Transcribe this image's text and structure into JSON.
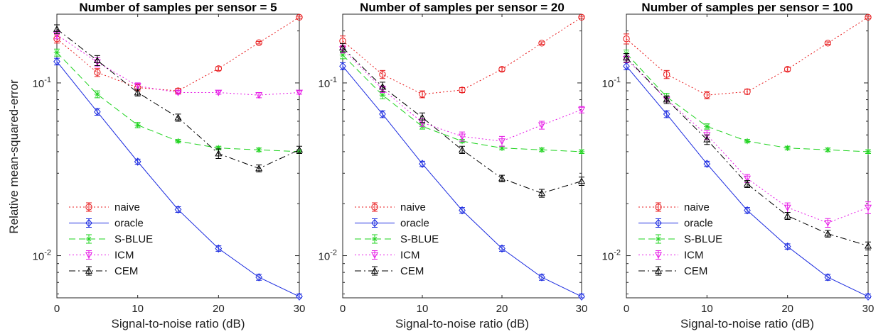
{
  "chart_data": [
    {
      "type": "line",
      "title": "Number of samples per sensor = 5",
      "xlabel": "Signal-to-noise ratio (dB)",
      "ylabel": "Relative mean-squared-error",
      "x": [
        0,
        5,
        10,
        15,
        20,
        25,
        30
      ],
      "xlim": [
        0,
        30
      ],
      "ylim": [
        0.0057,
        0.25
      ],
      "yscale": "log",
      "xticks": [
        "0",
        "10",
        "20",
        "30"
      ],
      "yticks": [
        {
          "base": "10",
          "exp": "-2"
        },
        {
          "base": "10",
          "exp": "-1"
        }
      ],
      "series": [
        {
          "name": "naive",
          "values": [
            0.18,
            0.115,
            0.094,
            0.09,
            0.121,
            0.171,
            0.24
          ],
          "err": [
            0.01,
            0.006,
            0.004,
            0.003,
            0.003,
            0.003,
            0.003
          ]
        },
        {
          "name": "oracle",
          "values": [
            0.133,
            0.068,
            0.035,
            0.0185,
            0.011,
            0.0075,
            0.0058
          ],
          "err": [
            0.006,
            0.003,
            0.0012,
            0.0007,
            0.0004,
            0.0003,
            0.0002
          ]
        },
        {
          "name": "S-BLUE",
          "values": [
            0.15,
            0.086,
            0.057,
            0.046,
            0.042,
            0.041,
            0.04
          ],
          "err": [
            0.007,
            0.004,
            0.002,
            0.001,
            0.001,
            0.001,
            0.001
          ]
        },
        {
          "name": "ICM",
          "values": [
            0.19,
            0.132,
            0.096,
            0.088,
            0.088,
            0.085,
            0.088
          ],
          "err": [
            0.01,
            0.008,
            0.004,
            0.002,
            0.002,
            0.003,
            0.002
          ]
        },
        {
          "name": "CEM",
          "values": [
            0.205,
            0.135,
            0.088,
            0.063,
            0.039,
            0.032,
            0.041
          ],
          "err": [
            0.012,
            0.009,
            0.004,
            0.003,
            0.0025,
            0.0015,
            0.002
          ]
        }
      ]
    },
    {
      "type": "line",
      "title": "Number of samples per sensor = 20",
      "xlabel": "Signal-to-noise ratio (dB)",
      "ylabel": "",
      "x": [
        0,
        5,
        10,
        15,
        20,
        25,
        30
      ],
      "xlim": [
        0,
        30
      ],
      "ylim": [
        0.0057,
        0.25
      ],
      "yscale": "log",
      "xticks": [
        "0",
        "10",
        "20",
        "30"
      ],
      "yticks": [
        {
          "base": "10",
          "exp": "-2"
        },
        {
          "base": "10",
          "exp": "-1"
        }
      ],
      "series": [
        {
          "name": "naive",
          "values": [
            0.175,
            0.112,
            0.086,
            0.091,
            0.12,
            0.17,
            0.24
          ],
          "err": [
            0.012,
            0.006,
            0.004,
            0.003,
            0.003,
            0.003,
            0.003
          ]
        },
        {
          "name": "oracle",
          "values": [
            0.125,
            0.066,
            0.034,
            0.0183,
            0.011,
            0.0075,
            0.0058
          ],
          "err": [
            0.006,
            0.003,
            0.0012,
            0.0007,
            0.0004,
            0.0003,
            0.0002
          ]
        },
        {
          "name": "S-BLUE",
          "values": [
            0.145,
            0.085,
            0.056,
            0.046,
            0.042,
            0.041,
            0.04
          ],
          "err": [
            0.007,
            0.004,
            0.002,
            0.001,
            0.001,
            0.001,
            0.001
          ]
        },
        {
          "name": "ICM",
          "values": [
            0.157,
            0.092,
            0.059,
            0.049,
            0.046,
            0.057,
            0.07
          ],
          "err": [
            0.008,
            0.004,
            0.003,
            0.003,
            0.003,
            0.003,
            0.003
          ]
        },
        {
          "name": "CEM",
          "values": [
            0.16,
            0.095,
            0.063,
            0.041,
            0.028,
            0.023,
            0.027
          ],
          "err": [
            0.009,
            0.006,
            0.004,
            0.002,
            0.0012,
            0.0012,
            0.0015
          ]
        }
      ]
    },
    {
      "type": "line",
      "title": "Number of samples per sensor = 100",
      "xlabel": "Signal-to-noise ratio (dB)",
      "ylabel": "",
      "x": [
        0,
        5,
        10,
        15,
        20,
        25,
        30
      ],
      "xlim": [
        0,
        30
      ],
      "ylim": [
        0.0057,
        0.25
      ],
      "yscale": "log",
      "xticks": [
        "0",
        "10",
        "20",
        "30"
      ],
      "yticks": [
        {
          "base": "10",
          "exp": "-2"
        },
        {
          "base": "10",
          "exp": "-1"
        }
      ],
      "series": [
        {
          "name": "naive",
          "values": [
            0.18,
            0.112,
            0.085,
            0.089,
            0.12,
            0.17,
            0.24
          ],
          "err": [
            0.012,
            0.006,
            0.004,
            0.003,
            0.003,
            0.003,
            0.003
          ]
        },
        {
          "name": "oracle",
          "values": [
            0.125,
            0.066,
            0.034,
            0.0183,
            0.0113,
            0.0075,
            0.0058
          ],
          "err": [
            0.006,
            0.003,
            0.0012,
            0.0007,
            0.0004,
            0.0003,
            0.0002
          ]
        },
        {
          "name": "S-BLUE",
          "values": [
            0.148,
            0.083,
            0.056,
            0.046,
            0.042,
            0.041,
            0.04
          ],
          "err": [
            0.007,
            0.004,
            0.002,
            0.001,
            0.001,
            0.001,
            0.001
          ]
        },
        {
          "name": "ICM",
          "values": [
            0.138,
            0.08,
            0.05,
            0.028,
            0.019,
            0.0155,
            0.019
          ],
          "err": [
            0.007,
            0.004,
            0.003,
            0.0015,
            0.0012,
            0.0009,
            0.0015
          ]
        },
        {
          "name": "CEM",
          "values": [
            0.14,
            0.08,
            0.047,
            0.026,
            0.017,
            0.0134,
            0.0114
          ],
          "err": [
            0.008,
            0.004,
            0.003,
            0.0012,
            0.0008,
            0.0006,
            0.0006
          ]
        }
      ]
    }
  ],
  "legend": {
    "placement": "lower-left",
    "entries": [
      "naive",
      "oracle",
      "S-BLUE",
      "ICM",
      "CEM"
    ]
  },
  "colors": {
    "naive": "#e8191b",
    "oracle": "#1b2be0",
    "S-BLUE": "#1ed31e",
    "ICM": "#e619e6",
    "CEM": "#000000"
  },
  "markers": {
    "naive": "circle",
    "oracle": "diamond",
    "S-BLUE": "asterisk",
    "ICM": "triangle-down",
    "CEM": "triangle-up"
  },
  "dashes": {
    "naive": "dotted",
    "oracle": "solid",
    "S-BLUE": "dashed",
    "ICM": "dotted",
    "CEM": "dash-dot"
  }
}
